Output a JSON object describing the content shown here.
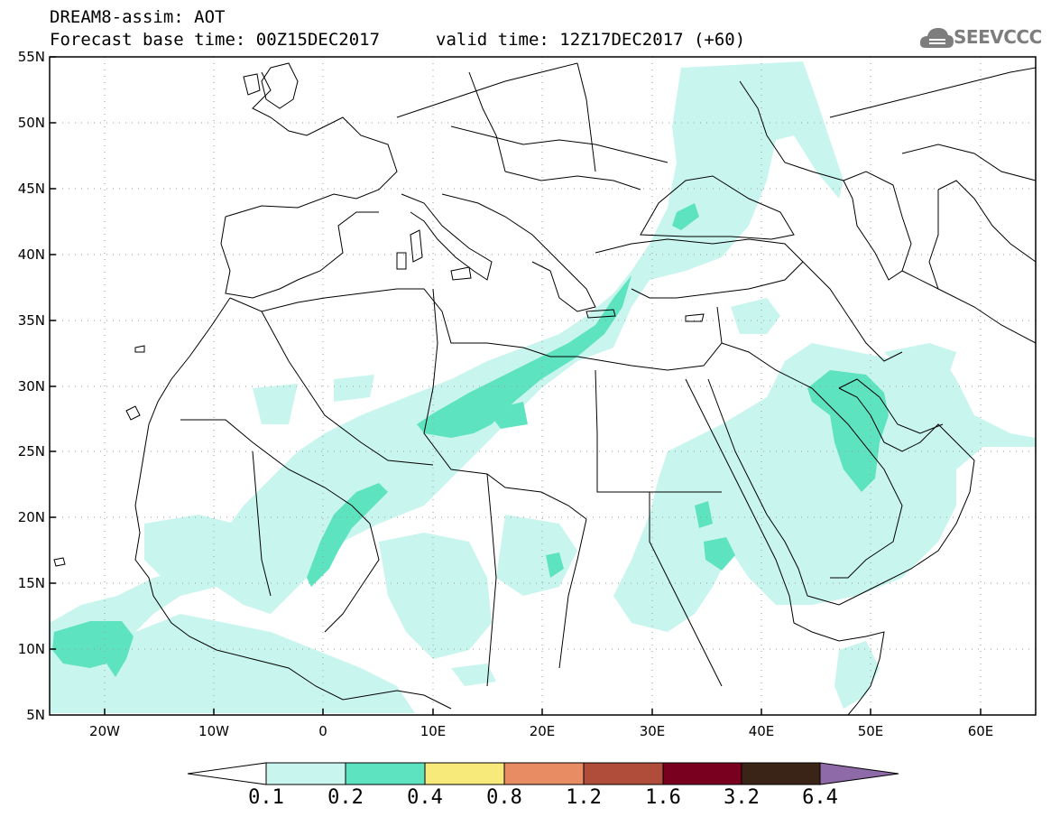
{
  "title": {
    "line1": "DREAM8-assim: AOT",
    "line2": "Forecast base time: 00Z15DEC2017",
    "valid": "valid time: 12Z17DEC2017 (+60)"
  },
  "logo": {
    "text": "SEEVCCC",
    "icon": "cloud-icon"
  },
  "map": {
    "lon_range": [
      -25,
      65
    ],
    "lat_range": [
      5,
      55
    ],
    "grid": true,
    "lat_ticks": [
      "55N",
      "50N",
      "45N",
      "40N",
      "35N",
      "30N",
      "25N",
      "20N",
      "15N",
      "10N",
      "5N"
    ],
    "lon_ticks": [
      "20W",
      "10W",
      "0",
      "10E",
      "20E",
      "30E",
      "40E",
      "50E",
      "60E"
    ],
    "lon_tick_values": [
      -20,
      -10,
      0,
      10,
      20,
      30,
      40,
      50,
      60
    ]
  },
  "colorbar": {
    "labels": [
      "0.1",
      "0.2",
      "0.4",
      "0.8",
      "1.2",
      "1.6",
      "3.2",
      "6.4"
    ],
    "colors": [
      "#c8f5ee",
      "#5ee3c0",
      "#f7e97a",
      "#e88c64",
      "#b04c3a",
      "#7a0020",
      "#3a2417",
      "#8e6aa8"
    ]
  },
  "colors": {
    "aot_01_02": "#c8f5ee",
    "aot_02_04": "#5ee3c0",
    "border": "#000000",
    "grid": "#b0b0b0"
  }
}
